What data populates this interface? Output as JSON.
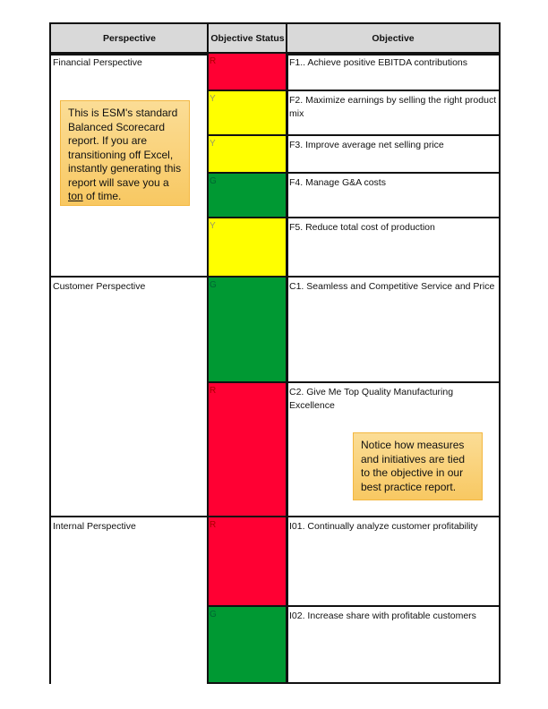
{
  "headers": {
    "perspective": "Perspective",
    "status": "Objective Status",
    "objective": "Objective"
  },
  "colors": {
    "R": "#ff0033",
    "Y": "#ffff00",
    "G": "#009933",
    "header_bg": "#d9d9d9",
    "callout_bg": "#fad27a"
  },
  "perspectives": [
    {
      "label": "Financial Perspective"
    },
    {
      "label": "Customer Perspective"
    },
    {
      "label": "Internal Perspective"
    }
  ],
  "objectives": [
    {
      "status": "R",
      "text": "F1.. Achieve positive EBITDA contributions"
    },
    {
      "status": "Y",
      "text": "F2. Maximize earnings by selling the right product mix"
    },
    {
      "status": "Y",
      "text": "F3. Improve average net selling price"
    },
    {
      "status": "G",
      "text": "F4. Manage G&A costs"
    },
    {
      "status": "Y",
      "text": "F5. Reduce total cost of production"
    },
    {
      "status": "G",
      "text": "C1. Seamless and Competitive Service and Price"
    },
    {
      "status": "R",
      "text": "C2. Give Me Top Quality Manufacturing Excellence"
    },
    {
      "status": "R",
      "text": "I01. Continually analyze customer profitability"
    },
    {
      "status": "G",
      "text": "I02. Increase share with profitable customers"
    }
  ],
  "callouts": {
    "left": {
      "before": "This is ESM's standard Balanced Scorecard report.  If you are transitioning off Excel, instantly generating this report will save you a ",
      "underlined": "ton",
      "after": " of time."
    },
    "right": {
      "text": "Notice how measures and initiatives are tied to the objective in our best practice report."
    }
  }
}
